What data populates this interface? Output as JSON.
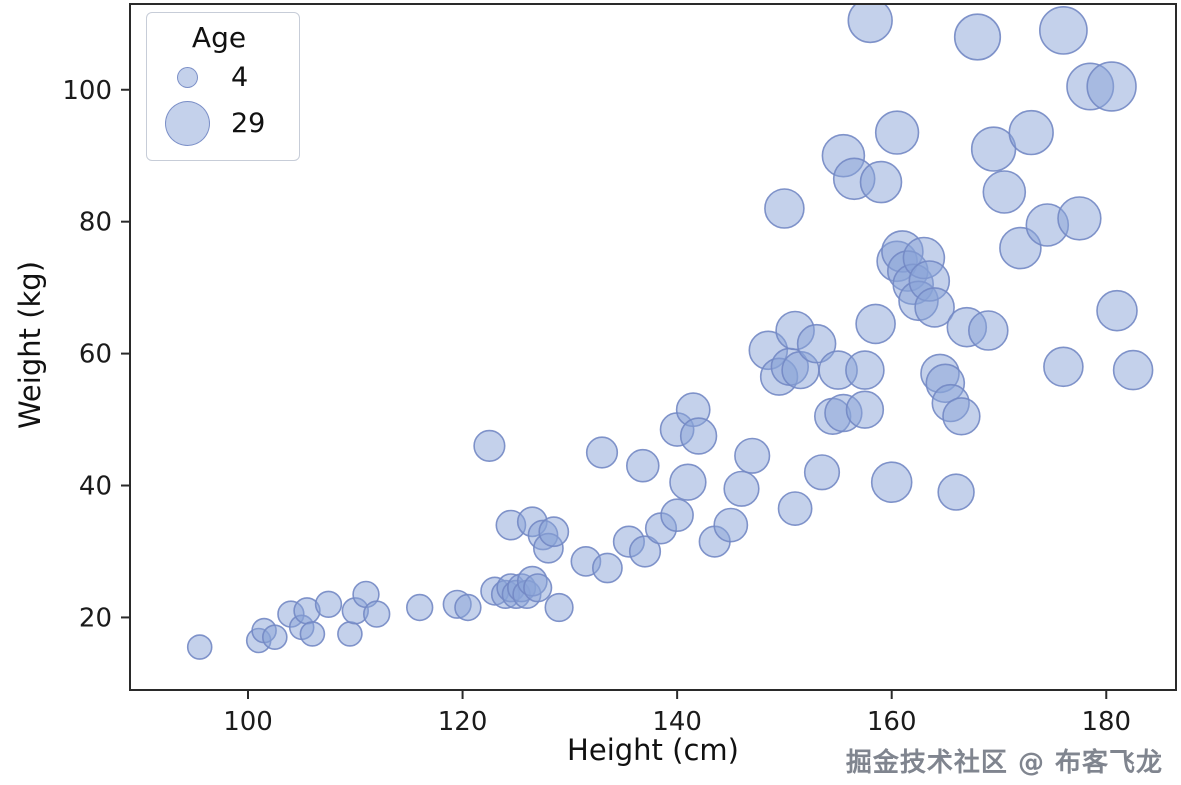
{
  "watermark": {
    "text": "掘金技术社区 @ 布客飞龙"
  },
  "chart_data": {
    "type": "scatter",
    "title": "",
    "xlabel": "Height (cm)",
    "ylabel": "Weight (kg)",
    "xlim": [
      89,
      186.5
    ],
    "ylim": [
      9,
      113
    ],
    "x_ticks": [
      100,
      120,
      140,
      160,
      180
    ],
    "y_ticks": [
      20,
      40,
      60,
      80,
      100
    ],
    "grid": false,
    "legend": {
      "title": "Age",
      "position": "upper left",
      "entries": [
        {
          "label": "4",
          "age": 4
        },
        {
          "label": "29",
          "age": 29
        }
      ]
    },
    "colors": {
      "bubble_fill": "#8aa3d8",
      "bubble_fill_opacity": 0.5,
      "bubble_stroke": "#7388c4",
      "bubble_stroke_opacity": 0.9,
      "spine": "#2a2a2a",
      "tick_text": "#1b1b1b"
    },
    "size_encoding": {
      "field": "age",
      "min": 4,
      "max": 29
    },
    "points_format": [
      "height_cm",
      "weight_kg",
      "age"
    ],
    "points": [
      [
        95.5,
        15.5,
        4
      ],
      [
        101,
        16.5,
        4
      ],
      [
        101.5,
        18,
        4
      ],
      [
        102.5,
        17,
        4
      ],
      [
        104,
        20.5,
        5
      ],
      [
        105,
        18.5,
        4
      ],
      [
        105.5,
        21,
        5
      ],
      [
        106,
        17.5,
        4
      ],
      [
        107.5,
        22,
        5
      ],
      [
        109.5,
        17.5,
        4
      ],
      [
        110,
        21,
        5
      ],
      [
        111,
        23.5,
        5
      ],
      [
        112,
        20.5,
        5
      ],
      [
        116,
        21.5,
        5
      ],
      [
        119.5,
        22,
        6
      ],
      [
        120.5,
        21.5,
        5
      ],
      [
        122.5,
        46,
        8
      ],
      [
        123,
        24,
        6
      ],
      [
        124,
        23.5,
        6
      ],
      [
        124.5,
        24.5,
        6
      ],
      [
        124.5,
        34,
        7
      ],
      [
        125,
        23.5,
        6
      ],
      [
        125.5,
        24.5,
        6
      ],
      [
        126,
        23.5,
        6
      ],
      [
        126.5,
        25.5,
        7
      ],
      [
        126.5,
        34.5,
        7
      ],
      [
        127,
        24.5,
        6
      ],
      [
        127.5,
        32.5,
        7
      ],
      [
        128,
        30.5,
        7
      ],
      [
        128.5,
        33,
        7
      ],
      [
        129,
        21.5,
        6
      ],
      [
        131.5,
        28.5,
        7
      ],
      [
        133,
        45,
        8
      ],
      [
        133.5,
        27.5,
        7
      ],
      [
        135.5,
        31.5,
        8
      ],
      [
        137,
        30,
        8
      ],
      [
        136.8,
        43,
        9
      ],
      [
        138.5,
        33.5,
        8
      ],
      [
        140,
        35.5,
        9
      ],
      [
        140,
        48.5,
        10
      ],
      [
        141,
        40.5,
        12
      ],
      [
        141.5,
        51.5,
        10
      ],
      [
        142,
        47.5,
        12
      ],
      [
        143.5,
        31.5,
        8
      ],
      [
        145,
        34,
        10
      ],
      [
        146,
        39.5,
        11
      ],
      [
        147,
        44.5,
        11
      ],
      [
        148.5,
        60.5,
        14
      ],
      [
        149.5,
        56.5,
        13
      ],
      [
        150,
        82,
        15
      ],
      [
        150.5,
        58,
        13
      ],
      [
        151,
        36.5,
        10
      ],
      [
        151,
        63.5,
        14
      ],
      [
        151.5,
        57.5,
        13
      ],
      [
        153,
        61.5,
        14
      ],
      [
        153.5,
        42,
        11
      ],
      [
        154.5,
        50.5,
        12
      ],
      [
        155,
        57.5,
        14
      ],
      [
        155.5,
        51,
        13
      ],
      [
        155.5,
        90,
        18
      ],
      [
        156.5,
        86.5,
        17
      ],
      [
        157.5,
        57.5,
        14
      ],
      [
        157.5,
        51.5,
        13
      ],
      [
        158,
        110.5,
        20
      ],
      [
        158.5,
        64.5,
        15
      ],
      [
        159,
        86,
        17
      ],
      [
        160,
        40.5,
        16
      ],
      [
        160.5,
        93.5,
        19
      ],
      [
        160.5,
        74,
        16
      ],
      [
        161,
        75.5,
        17
      ],
      [
        161.5,
        72.5,
        16
      ],
      [
        162,
        70.5,
        16
      ],
      [
        162.5,
        68,
        15
      ],
      [
        163,
        74.5,
        17
      ],
      [
        163.5,
        71,
        16
      ],
      [
        164,
        67,
        15
      ],
      [
        164.5,
        57,
        14
      ],
      [
        165,
        55.5,
        14
      ],
      [
        165.5,
        52.5,
        13
      ],
      [
        166,
        39,
        12
      ],
      [
        166.5,
        50.5,
        13
      ],
      [
        167,
        64,
        15
      ],
      [
        168,
        108,
        22
      ],
      [
        169,
        63.5,
        15
      ],
      [
        169.5,
        91,
        20
      ],
      [
        170.5,
        84.5,
        18
      ],
      [
        172,
        76,
        17
      ],
      [
        173,
        93.5,
        20
      ],
      [
        174.5,
        79.5,
        18
      ],
      [
        176,
        58,
        15
      ],
      [
        176,
        109,
        24
      ],
      [
        177.5,
        80.5,
        19
      ],
      [
        178.5,
        100.5,
        23
      ],
      [
        180.5,
        100.5,
        26
      ],
      [
        181,
        66.5,
        16
      ],
      [
        182.5,
        57.5,
        15
      ]
    ]
  }
}
